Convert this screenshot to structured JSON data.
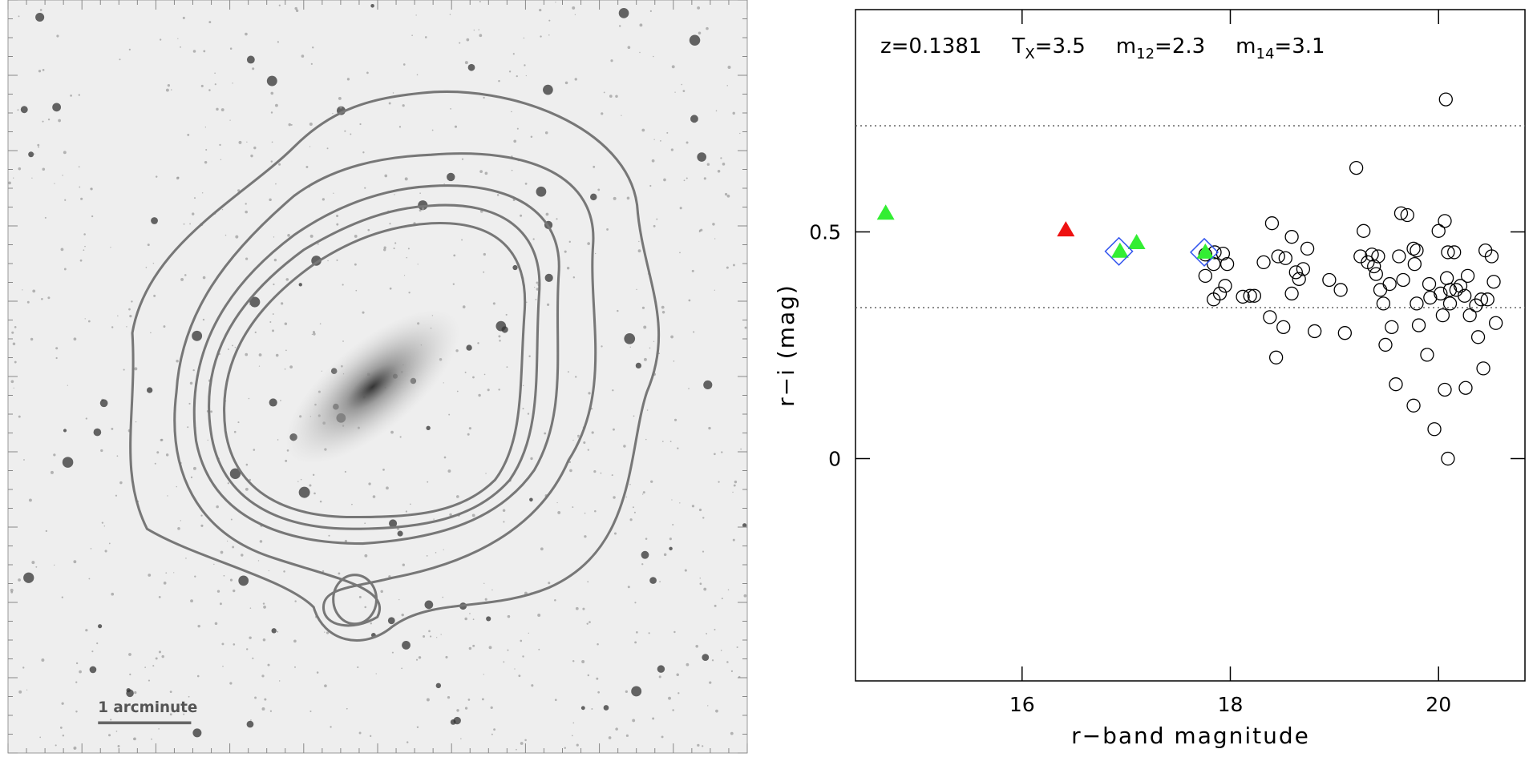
{
  "image_panel": {
    "scale_label": "1 arcminute"
  },
  "chart_data": {
    "type": "scatter",
    "annotations": [
      {
        "text": "z=0.1381"
      },
      {
        "text": "T",
        "sub": "X",
        "rest": "=3.5"
      },
      {
        "text": "m",
        "sub": "12",
        "rest": "=2.3"
      },
      {
        "text": "m",
        "sub": "14",
        "rest": "=3.1"
      }
    ],
    "x_label": "r−band magnitude",
    "y_label": "r−i (mag)",
    "xlim": [
      14.4,
      20.83
    ],
    "ylim": [
      -0.49,
      0.99
    ],
    "xticks": [
      16,
      18,
      20
    ],
    "yticks": [
      0,
      0.5
    ],
    "hlines": [
      0.734,
      0.333
    ],
    "hline_style": "dotted",
    "series": [
      {
        "marker": "circle",
        "color": "#000000",
        "x": [
          17.76,
          17.85,
          17.93,
          17.84,
          17.97,
          17.76,
          17.95,
          17.9,
          17.84,
          18.12,
          18.19,
          18.23,
          18.4,
          18.32,
          18.46,
          18.53,
          18.59,
          18.63,
          18.66,
          18.7,
          18.74,
          18.59,
          18.38,
          18.51,
          18.44,
          18.81,
          18.95,
          19.06,
          19.1,
          19.21,
          19.28,
          19.25,
          19.32,
          19.36,
          19.38,
          19.42,
          19.4,
          19.44,
          19.47,
          19.49,
          19.53,
          19.55,
          19.59,
          19.62,
          19.64,
          19.7,
          19.66,
          19.76,
          19.79,
          19.77,
          19.81,
          19.79,
          19.76,
          19.89,
          19.91,
          19.92,
          19.96,
          20.0,
          20.06,
          20.02,
          20.04,
          20.08,
          20.09,
          20.06,
          20.09,
          20.11,
          20.15,
          20.17,
          20.11,
          20.21,
          20.25,
          20.28,
          20.3,
          20.26,
          20.36,
          20.38,
          20.41,
          20.43,
          20.45,
          20.47,
          20.51,
          20.53,
          20.55,
          20.07
        ],
        "values": [
          0.45,
          0.455,
          0.452,
          0.429,
          0.429,
          0.403,
          0.381,
          0.364,
          0.351,
          0.357,
          0.359,
          0.359,
          0.519,
          0.433,
          0.446,
          0.442,
          0.489,
          0.411,
          0.396,
          0.418,
          0.463,
          0.364,
          0.312,
          0.29,
          0.223,
          0.281,
          0.394,
          0.372,
          0.277,
          0.641,
          0.502,
          0.446,
          0.433,
          0.45,
          0.424,
          0.446,
          0.407,
          0.372,
          0.342,
          0.251,
          0.385,
          0.29,
          0.164,
          0.446,
          0.541,
          0.537,
          0.394,
          0.463,
          0.459,
          0.429,
          0.294,
          0.342,
          0.117,
          0.229,
          0.385,
          0.355,
          0.065,
          0.502,
          0.524,
          0.364,
          0.316,
          0.398,
          0.455,
          0.152,
          0.0,
          0.372,
          0.455,
          0.372,
          0.342,
          0.381,
          0.359,
          0.403,
          0.316,
          0.156,
          0.338,
          0.268,
          0.351,
          0.199,
          0.459,
          0.351,
          0.446,
          0.39,
          0.299,
          0.792
        ]
      },
      {
        "marker": "triangle",
        "color": "#33ee33",
        "x": [
          14.69,
          16.94,
          17.1,
          17.76
        ],
        "values": [
          0.541,
          0.457,
          0.476,
          0.455
        ]
      },
      {
        "marker": "triangle",
        "color": "#ee1111",
        "x": [
          16.42
        ],
        "values": [
          0.504
        ]
      },
      {
        "marker": "diamond",
        "color": "#3355ee",
        "x": [
          16.93,
          17.75
        ],
        "values": [
          0.457,
          0.455
        ]
      }
    ]
  }
}
